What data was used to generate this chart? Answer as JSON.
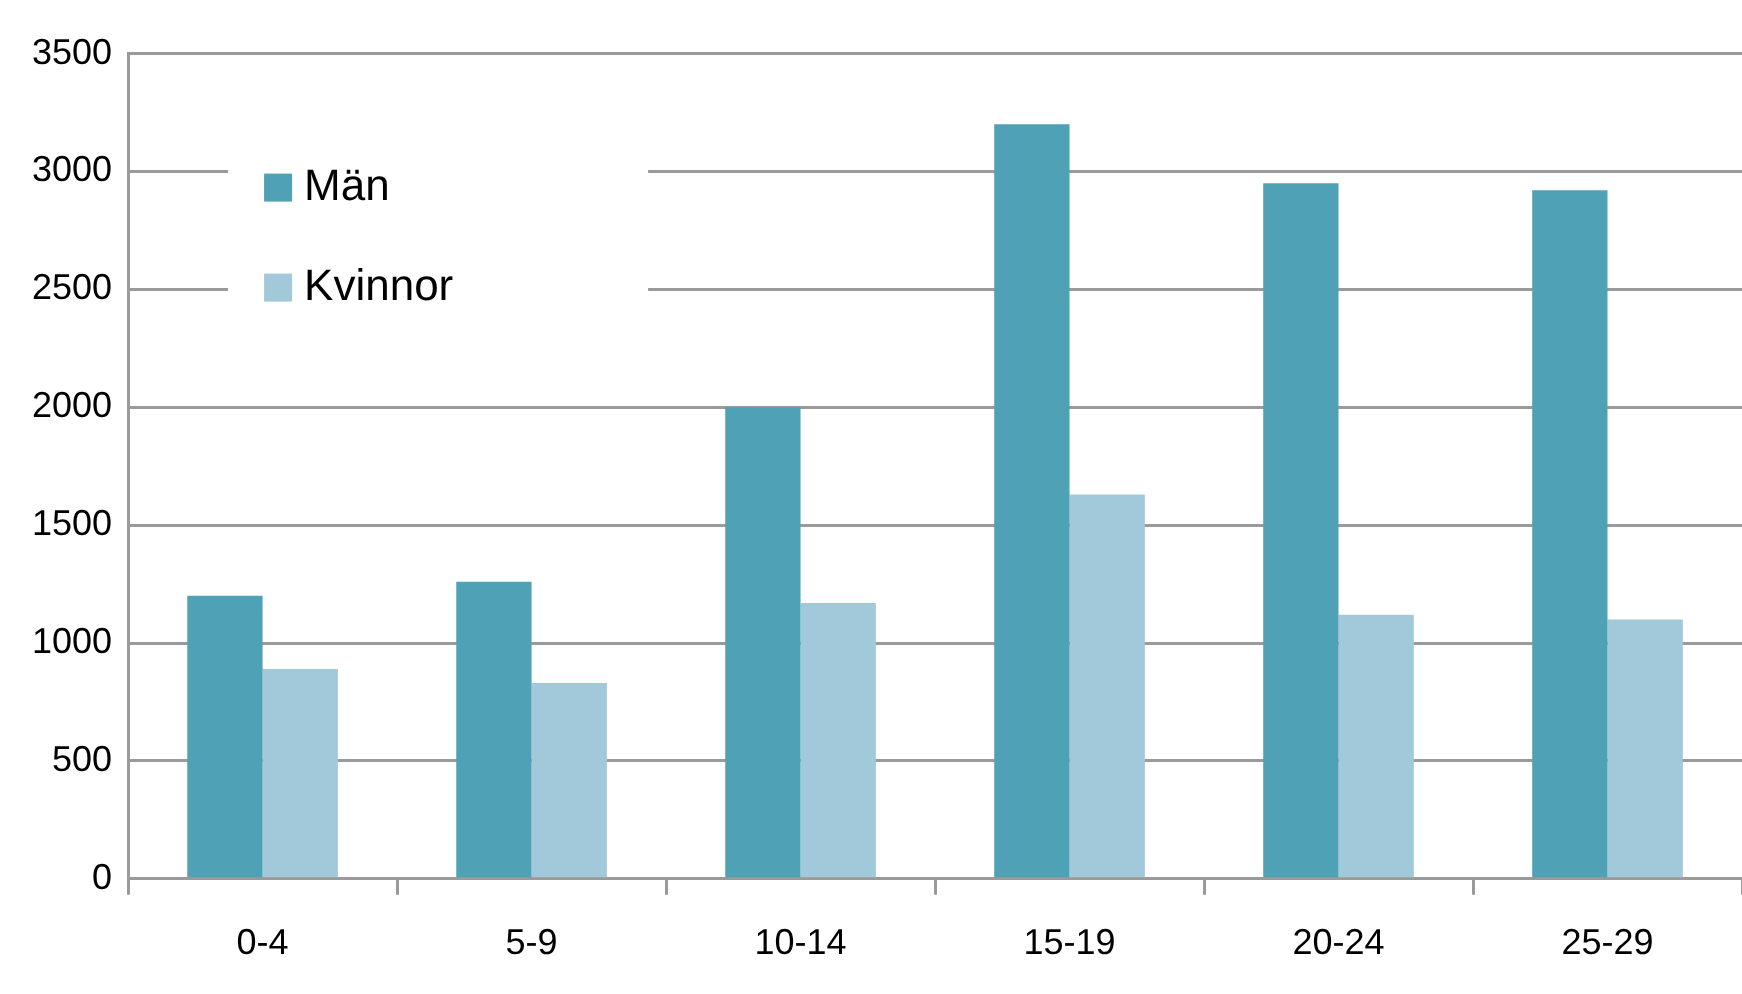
{
  "chart_data": {
    "type": "bar",
    "categories": [
      "0-4",
      "5-9",
      "10-14",
      "15-19",
      "20-24",
      "25-29"
    ],
    "series": [
      {
        "name": "Män",
        "color": "#4fa2b6",
        "values": [
          1200,
          1260,
          2000,
          3200,
          2950,
          2920
        ]
      },
      {
        "name": "Kvinnor",
        "color": "#a2c9d9",
        "values": [
          890,
          830,
          1170,
          1630,
          1120,
          1100
        ]
      }
    ],
    "ylim": [
      0,
      3500
    ],
    "yticks": [
      0,
      500,
      1000,
      1500,
      2000,
      2500,
      3000,
      3500
    ],
    "grid": "y",
    "legend": "top left"
  }
}
